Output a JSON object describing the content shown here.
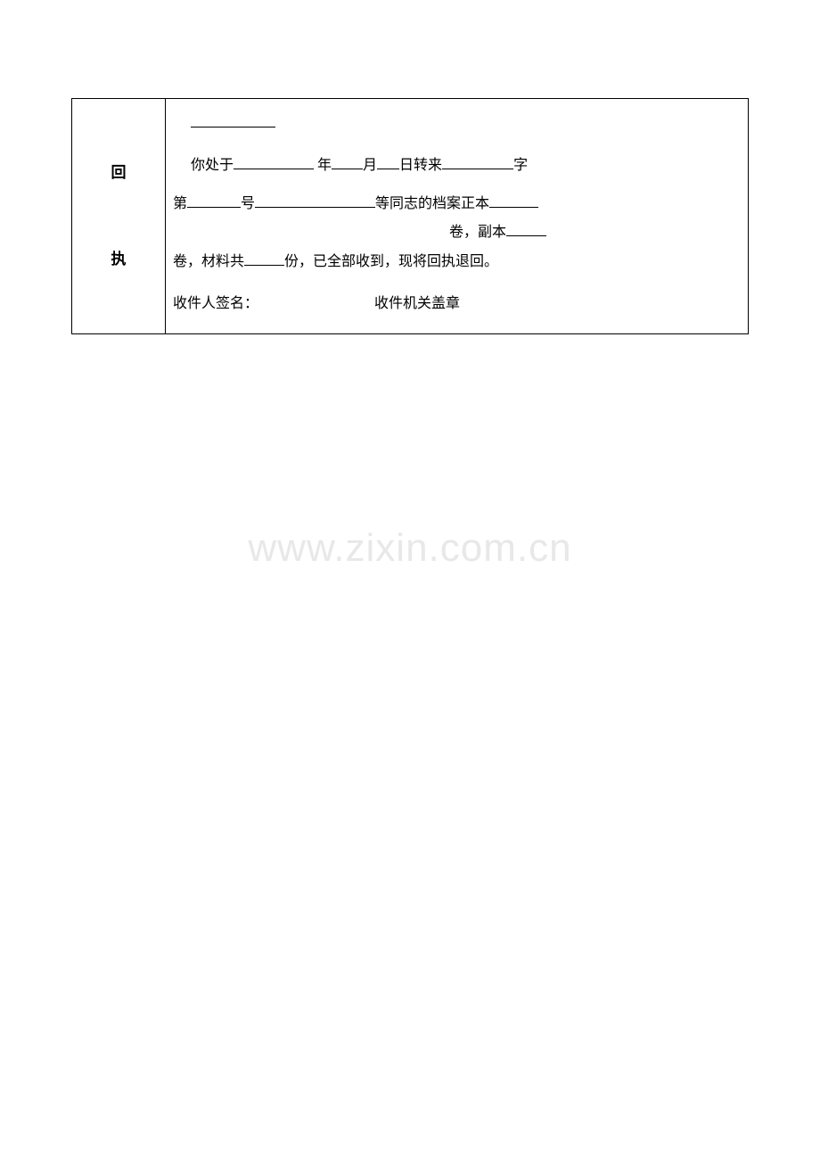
{
  "leftColumn": {
    "char1": "回",
    "char2": "执"
  },
  "body": {
    "prefix1": "你处于",
    "year": " 年",
    "month": "月",
    "day": "日转来",
    "suffix1": "字",
    "prefix2": "第",
    "hao": "号",
    "archive": "等同志的档案正本",
    "juan1": "卷，副本",
    "juan2": "卷，材料共",
    "fen": "份，已全部收到，现将回执退回。",
    "sigLabel": "收件人签名：",
    "stampLabel": "收件机关盖章"
  },
  "watermark": "www.zixin.com.cn",
  "blanks": {
    "topBlank": 95,
    "afterNichuyu": 90,
    "beforeYear": 0,
    "afterYear": 35,
    "afterMonth": 25,
    "afterZhuanLai": 80,
    "afterDi": 60,
    "afterHao": 135,
    "afterZhengben": 55,
    "afterFuben": 45,
    "afterCailiaogong": 45
  },
  "colors": {
    "border": "#000000",
    "text": "#000000",
    "background": "#ffffff",
    "watermark": "#e8e8e8"
  }
}
